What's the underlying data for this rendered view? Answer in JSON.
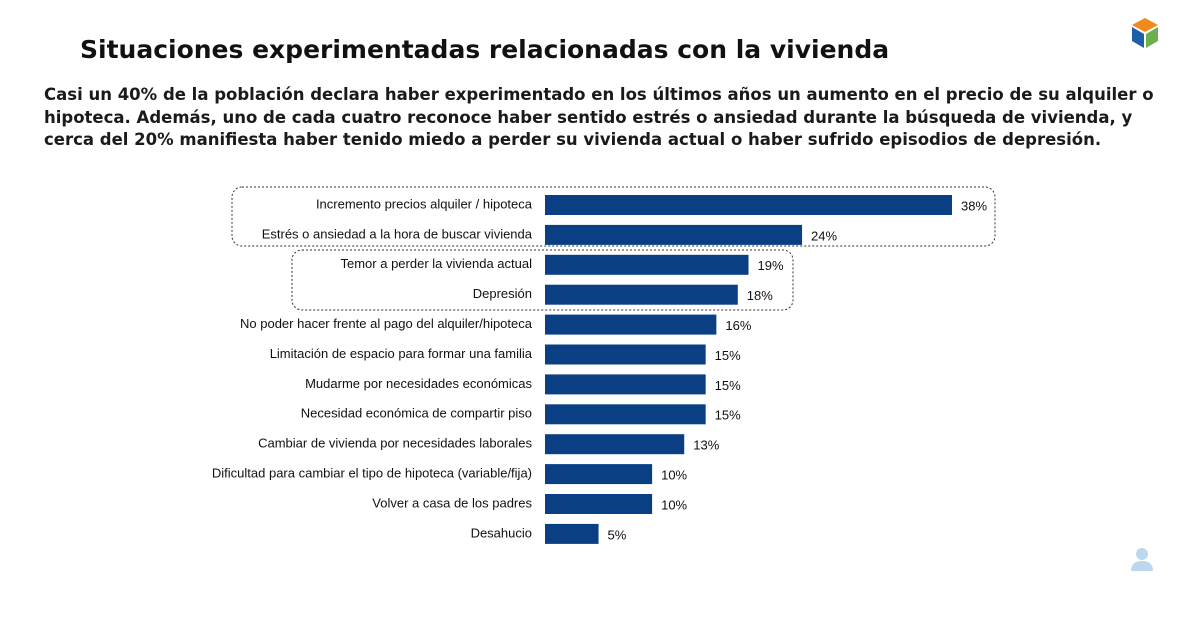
{
  "chart_data": {
    "type": "bar",
    "orientation": "horizontal",
    "title": "Situaciones experimentadas relacionadas con la vivienda",
    "subtitle": [
      "Casi un 40% de la población declara haber experimentado en los últimos años un aumento en el precio de su alquiler o",
      "hipoteca. Además, uno de cada cuatro reconoce haber sentido estrés o ansiedad durante la búsqueda de vivienda, y",
      "cerca del 20% manifiesta haber tenido miedo a perder su vivienda actual o haber sufrido episodios de depresión."
    ],
    "categories": [
      "Incremento precios alquiler / hipoteca",
      "Estrés o ansiedad a la hora de buscar vivienda",
      "Temor a perder la vivienda actual",
      "Depresión",
      "No poder hacer frente al pago del alquiler/hipoteca",
      "Limitación de espacio para formar una familia",
      "Mudarme por necesidades económicas",
      "Necesidad económica de compartir piso",
      "Cambiar de vivienda por necesidades laborales",
      "Dificultad para cambiar el tipo de hipoteca (variable/fija)",
      "Volver a casa de los padres",
      "Desahucio"
    ],
    "values": [
      38,
      24,
      19,
      18,
      16,
      15,
      15,
      15,
      13,
      10,
      10,
      5
    ],
    "value_labels": [
      "38%",
      "24%",
      "19%",
      "18%",
      "16%",
      "15%",
      "15%",
      "15%",
      "13%",
      "10%",
      "10%",
      "5%"
    ],
    "color": "#0a3f84"
  }
}
